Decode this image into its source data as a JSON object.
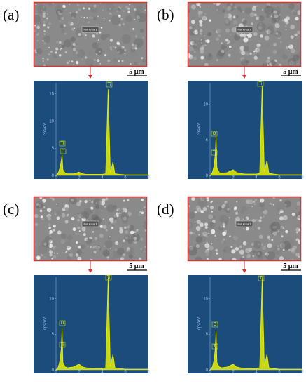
{
  "chart_data": [
    {
      "type": "line",
      "panel_label": "(a)",
      "area_label": "Full Area 1",
      "scale_bar": "5 μm",
      "ylabel": "cps/eV",
      "color": "#e8f000",
      "xlim": [
        0,
        8
      ],
      "xticks": [
        0,
        2,
        4,
        6,
        8
      ],
      "ylim": [
        0,
        17
      ],
      "yticks": [
        0,
        5,
        10,
        15
      ],
      "x": [
        0,
        0.2,
        0.35,
        0.45,
        0.52,
        0.6,
        0.8,
        1.0,
        1.5,
        2.0,
        2.3,
        2.6,
        3.0,
        3.5,
        4.0,
        4.3,
        4.51,
        4.7,
        4.93,
        5.1,
        5.5,
        6.0,
        7.0,
        8.0
      ],
      "values": [
        0,
        0.5,
        1.5,
        2.7,
        3.8,
        1.0,
        0.4,
        0.3,
        0.3,
        0.6,
        0.3,
        0.2,
        0.2,
        0.2,
        0.2,
        0.3,
        15.8,
        0.5,
        2.5,
        0.3,
        0.2,
        0.1,
        0.1,
        0.1
      ],
      "annotations": [
        "Ti",
        "Ti",
        "O"
      ]
    },
    {
      "type": "line",
      "panel_label": "(b)",
      "area_label": "Full Area 1",
      "scale_bar": "5 μm",
      "ylabel": "cps/eV",
      "color": "#e8f000",
      "xlim": [
        0,
        8
      ],
      "xticks": [
        0,
        2,
        4,
        6,
        8
      ],
      "ylim": [
        0,
        13
      ],
      "yticks": [
        0,
        5,
        10
      ],
      "x": [
        0,
        0.2,
        0.35,
        0.45,
        0.52,
        0.6,
        0.8,
        1.0,
        1.5,
        2.0,
        2.3,
        2.6,
        3.0,
        3.5,
        4.0,
        4.3,
        4.51,
        4.7,
        4.93,
        5.1,
        5.5,
        6.0,
        7.0,
        8.0
      ],
      "values": [
        0,
        0.4,
        1.4,
        3.0,
        5.5,
        1.0,
        0.4,
        0.3,
        0.4,
        0.8,
        0.4,
        0.3,
        0.2,
        0.2,
        0.2,
        0.3,
        12.6,
        0.5,
        2.1,
        0.3,
        0.2,
        0.1,
        0.1,
        0.1
      ],
      "annotations": [
        "Ti",
        "O",
        "Ti"
      ]
    },
    {
      "type": "line",
      "panel_label": "(c)",
      "area_label": "Full Area 1",
      "scale_bar": "5 μm",
      "ylabel": "cps/eV",
      "color": "#e8f000",
      "xlim": [
        0,
        8
      ],
      "xticks": [
        0,
        2,
        4,
        6,
        8
      ],
      "ylim": [
        0,
        13
      ],
      "yticks": [
        0,
        5,
        10
      ],
      "x": [
        0,
        0.2,
        0.35,
        0.45,
        0.52,
        0.6,
        0.8,
        1.0,
        1.5,
        2.0,
        2.3,
        2.6,
        3.0,
        3.5,
        4.0,
        4.3,
        4.51,
        4.7,
        4.93,
        5.1,
        5.5,
        6.0,
        7.0,
        8.0
      ],
      "values": [
        0,
        0.4,
        1.4,
        3.0,
        5.8,
        1.0,
        0.4,
        0.3,
        0.4,
        0.8,
        0.4,
        0.3,
        0.2,
        0.2,
        0.2,
        0.3,
        12.9,
        0.5,
        2.2,
        0.3,
        0.2,
        0.1,
        0.1,
        0.1
      ],
      "annotations": [
        "Ti",
        "O",
        "Ti"
      ]
    },
    {
      "type": "line",
      "panel_label": "(d)",
      "area_label": "Full Area 1",
      "scale_bar": "5 μm",
      "ylabel": "cps/eV",
      "color": "#e8f000",
      "xlim": [
        0,
        8
      ],
      "xticks": [
        0,
        2,
        4,
        6,
        8
      ],
      "ylim": [
        0,
        13
      ],
      "yticks": [
        0,
        5,
        10
      ],
      "x": [
        0,
        0.2,
        0.35,
        0.45,
        0.52,
        0.6,
        0.8,
        1.0,
        1.5,
        2.0,
        2.3,
        2.6,
        3.0,
        3.5,
        4.0,
        4.3,
        4.51,
        4.7,
        4.93,
        5.1,
        5.5,
        6.0,
        7.0,
        8.0
      ],
      "values": [
        0,
        0.4,
        1.4,
        3.0,
        5.5,
        1.0,
        0.4,
        0.3,
        0.4,
        0.8,
        0.4,
        0.3,
        0.2,
        0.2,
        0.2,
        0.3,
        12.8,
        0.5,
        2.2,
        0.3,
        0.2,
        0.1,
        0.1,
        0.1
      ],
      "annotations": [
        "Ti",
        "O",
        "Ti"
      ]
    }
  ]
}
